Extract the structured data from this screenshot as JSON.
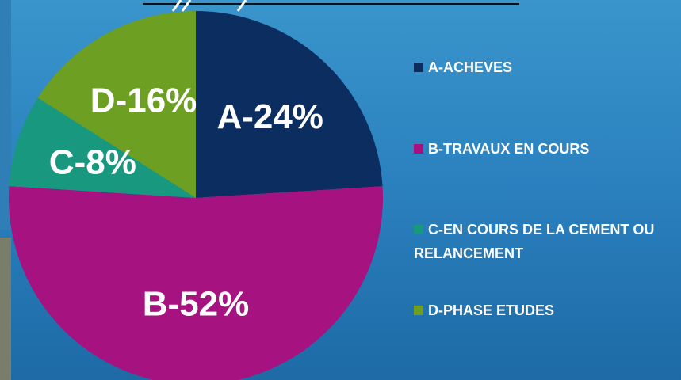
{
  "chart_data": {
    "type": "pie",
    "categories": [
      "A-ACHEVES",
      "B-TRAVAUX EN COURS",
      "C-EN COURS DE LA CEMENT OU  RELANCEMENT",
      "D-PHASE ETUDES"
    ],
    "values": [
      24,
      52,
      8,
      16
    ],
    "value_labels": [
      "A-24%",
      "B-52%",
      "C-8%",
      "D-16%"
    ],
    "colors": [
      "#0b2d5f",
      "#a6127f",
      "#17987f",
      "#6c9f22"
    ],
    "legend": "right"
  }
}
